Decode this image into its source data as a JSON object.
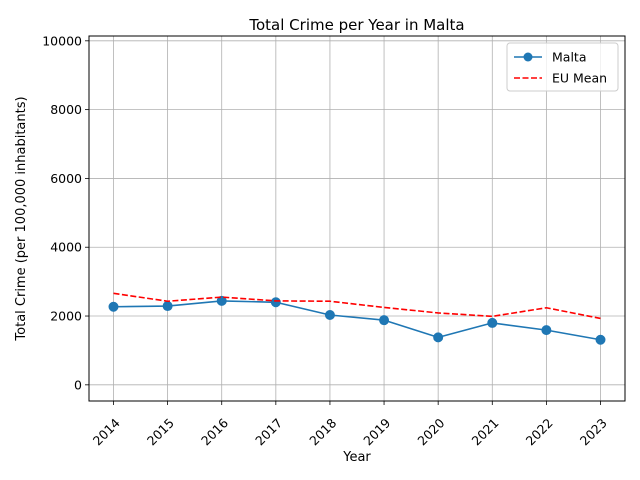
{
  "chart_data": {
    "type": "line",
    "title": "Total Crime per Year in Malta",
    "xlabel": "Year",
    "ylabel": "Total Crime (per 100,000 inhabitants)",
    "categories": [
      "2014",
      "2015",
      "2016",
      "2017",
      "2018",
      "2019",
      "2020",
      "2021",
      "2022",
      "2023"
    ],
    "yticks": [
      "0",
      "2000",
      "4000",
      "6000",
      "8000",
      "10000"
    ],
    "ylim": [
      -470,
      10140
    ],
    "grid": true,
    "legend_position": "top-right",
    "series": [
      {
        "name": "Malta",
        "style": "solid-with-circle-markers",
        "color": "#1f77b4",
        "values": [
          2270,
          2290,
          2440,
          2400,
          2030,
          1880,
          1380,
          1800,
          1590,
          1310
        ]
      },
      {
        "name": "EU Mean",
        "style": "dashed",
        "color": "#ff0000",
        "values": [
          2660,
          2430,
          2550,
          2440,
          2430,
          2250,
          2090,
          1990,
          2240,
          1930
        ]
      }
    ]
  }
}
